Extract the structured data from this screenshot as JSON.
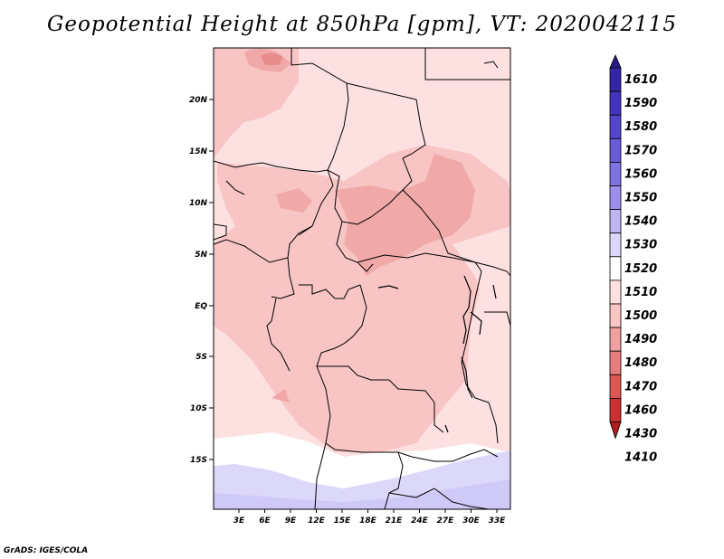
{
  "title": "Geopotential Height at 850hPa [gpm], VT: 2020042115",
  "footer": "GrADS: IGES/COLA",
  "map": {
    "lat_labels": [
      "20N",
      "15N",
      "10N",
      "5N",
      "EQ",
      "5S",
      "10S",
      "15S"
    ],
    "lon_labels": [
      "3E",
      "6E",
      "9E",
      "12E",
      "15E",
      "18E",
      "21E",
      "24E",
      "27E",
      "30E",
      "33E"
    ]
  },
  "colorbar": {
    "levels": [
      "1610",
      "1590",
      "1580",
      "1570",
      "1560",
      "1550",
      "1540",
      "1530",
      "1520",
      "1510",
      "1500",
      "1490",
      "1480",
      "1470",
      "1460",
      "1430",
      "1410"
    ],
    "colors": [
      "#2a1a8c",
      "#3526a8",
      "#4433be",
      "#5544cc",
      "#6a5bd8",
      "#7f72e2",
      "#9c90ec",
      "#bdb6f3",
      "#dcd8fa",
      "#ffffff",
      "#fde0e0",
      "#f8c4c4",
      "#f0a0a0",
      "#e87c7c",
      "#de5656",
      "#cc3030",
      "#b01c1c"
    ]
  }
}
